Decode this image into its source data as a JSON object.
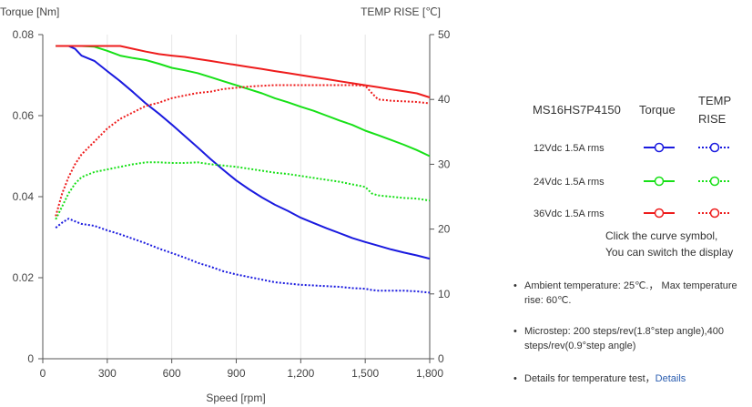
{
  "chart_data": {
    "type": "line",
    "xlabel": "Speed [rpm]",
    "ylabel_left": "Torque  [Nm]",
    "ylabel_right": "TEMP RISE [℃]",
    "xlim": [
      0,
      1800
    ],
    "ylim_left": [
      0,
      0.08
    ],
    "ylim_right": [
      0,
      50
    ],
    "x_ticks": [
      0,
      300,
      600,
      900,
      1200,
      1500,
      1800
    ],
    "x_tick_labels": [
      "0",
      "300",
      "600",
      "900",
      "1,200",
      "1,500",
      "1,800"
    ],
    "y_left_ticks": [
      0,
      0.02,
      0.04,
      0.06,
      0.08
    ],
    "y_left_tick_labels": [
      "0",
      "0.02",
      "0.04",
      "0.06",
      "0.08"
    ],
    "y_right_ticks": [
      0,
      10,
      20,
      30,
      40,
      50
    ],
    "y_right_tick_labels": [
      "0",
      "10",
      "20",
      "30",
      "40",
      "50"
    ],
    "grid": "vertical",
    "series": [
      {
        "name": "12Vdc 1.5A rms",
        "kind": "torque",
        "axis": "left",
        "color": "#1a1adf",
        "x": [
          60,
          120,
          150,
          180,
          240,
          300,
          360,
          420,
          480,
          540,
          600,
          660,
          720,
          780,
          840,
          900,
          960,
          1020,
          1080,
          1140,
          1200,
          1260,
          1320,
          1380,
          1440,
          1500,
          1560,
          1620,
          1680,
          1740,
          1800
        ],
        "y": [
          0.0772,
          0.0772,
          0.0765,
          0.0748,
          0.0735,
          0.071,
          0.0685,
          0.0658,
          0.063,
          0.0605,
          0.0578,
          0.055,
          0.0522,
          0.0493,
          0.0466,
          0.044,
          0.0418,
          0.0398,
          0.038,
          0.0365,
          0.0348,
          0.0335,
          0.0322,
          0.031,
          0.0298,
          0.0288,
          0.0279,
          0.027,
          0.0262,
          0.0255,
          0.0247
        ]
      },
      {
        "name": "24Vdc 1.5A rms",
        "kind": "torque",
        "axis": "left",
        "color": "#17e017",
        "x": [
          60,
          120,
          180,
          240,
          300,
          360,
          420,
          480,
          540,
          600,
          660,
          720,
          780,
          840,
          900,
          960,
          1020,
          1080,
          1140,
          1200,
          1260,
          1320,
          1380,
          1440,
          1500,
          1560,
          1620,
          1680,
          1740,
          1800
        ],
        "y": [
          0.0772,
          0.0772,
          0.0772,
          0.077,
          0.076,
          0.0748,
          0.0742,
          0.0737,
          0.0728,
          0.0718,
          0.0712,
          0.0705,
          0.0695,
          0.0685,
          0.0675,
          0.0665,
          0.0655,
          0.0643,
          0.0633,
          0.0622,
          0.0612,
          0.06,
          0.0588,
          0.0577,
          0.0563,
          0.0552,
          0.054,
          0.0528,
          0.0515,
          0.05
        ]
      },
      {
        "name": "36Vdc 1.5A rms",
        "kind": "torque",
        "axis": "left",
        "color": "#ee1c1c",
        "x": [
          60,
          120,
          180,
          240,
          300,
          360,
          420,
          480,
          540,
          600,
          660,
          720,
          780,
          840,
          900,
          960,
          1020,
          1080,
          1140,
          1200,
          1260,
          1320,
          1380,
          1440,
          1500,
          1560,
          1620,
          1680,
          1740,
          1800
        ],
        "y": [
          0.0772,
          0.0772,
          0.0772,
          0.0772,
          0.0772,
          0.0772,
          0.0765,
          0.0758,
          0.0752,
          0.0748,
          0.0745,
          0.074,
          0.0735,
          0.073,
          0.0725,
          0.072,
          0.0715,
          0.071,
          0.0705,
          0.07,
          0.0695,
          0.069,
          0.0685,
          0.068,
          0.0675,
          0.067,
          0.0665,
          0.066,
          0.0655,
          0.0645
        ]
      },
      {
        "name": "12Vdc 1.5A rms",
        "kind": "temp",
        "axis": "right",
        "color": "#1a1adf",
        "x": [
          60,
          90,
          120,
          150,
          180,
          240,
          300,
          360,
          420,
          480,
          540,
          600,
          660,
          720,
          780,
          840,
          900,
          960,
          1020,
          1080,
          1140,
          1200,
          1260,
          1320,
          1380,
          1440,
          1500,
          1530,
          1560,
          1620,
          1680,
          1740,
          1800
        ],
        "y": [
          20.2,
          21.0,
          21.6,
          21.2,
          20.8,
          20.5,
          19.8,
          19.2,
          18.5,
          17.8,
          17.0,
          16.3,
          15.6,
          14.8,
          14.2,
          13.5,
          13.0,
          12.6,
          12.2,
          11.8,
          11.6,
          11.4,
          11.3,
          11.2,
          11.1,
          10.9,
          10.8,
          10.6,
          10.5,
          10.5,
          10.5,
          10.4,
          10.2
        ]
      },
      {
        "name": "24Vdc 1.5A rms",
        "kind": "temp",
        "axis": "right",
        "color": "#17e017",
        "x": [
          60,
          90,
          120,
          150,
          180,
          240,
          300,
          360,
          420,
          480,
          540,
          600,
          660,
          720,
          780,
          840,
          900,
          960,
          1020,
          1080,
          1140,
          1200,
          1260,
          1320,
          1380,
          1440,
          1500,
          1530,
          1560,
          1620,
          1680,
          1740,
          1800
        ],
        "y": [
          21.5,
          23.5,
          25.5,
          27.0,
          28.0,
          28.8,
          29.2,
          29.6,
          30.0,
          30.3,
          30.3,
          30.2,
          30.2,
          30.3,
          30.0,
          29.8,
          29.6,
          29.3,
          29.0,
          28.7,
          28.5,
          28.2,
          27.9,
          27.6,
          27.3,
          26.9,
          26.5,
          25.5,
          25.2,
          25.0,
          24.8,
          24.7,
          24.4
        ]
      },
      {
        "name": "36Vdc 1.5A rms",
        "kind": "temp",
        "axis": "right",
        "color": "#ee1c1c",
        "x": [
          60,
          90,
          120,
          150,
          180,
          240,
          300,
          360,
          420,
          480,
          540,
          600,
          660,
          720,
          780,
          840,
          900,
          960,
          1020,
          1080,
          1140,
          1200,
          1260,
          1320,
          1380,
          1440,
          1500,
          1530,
          1560,
          1620,
          1680,
          1740,
          1800
        ],
        "y": [
          22.0,
          25.5,
          28.0,
          30.0,
          31.5,
          33.5,
          35.5,
          37.0,
          38.0,
          39.0,
          39.5,
          40.2,
          40.6,
          41.0,
          41.2,
          41.6,
          41.8,
          42.0,
          42.1,
          42.2,
          42.2,
          42.2,
          42.2,
          42.2,
          42.2,
          42.2,
          42.1,
          41.0,
          40.0,
          39.8,
          39.7,
          39.6,
          39.4
        ]
      }
    ]
  },
  "legend": {
    "model": "MS16HS7P4150",
    "torque_header": "Torque",
    "temp_header_line1": "TEMP",
    "temp_header_line2": "RISE",
    "rows": [
      {
        "label": "12Vdc   1.5A rms",
        "color": "#1a1adf"
      },
      {
        "label": "24Vdc   1.5A rms",
        "color": "#17e017"
      },
      {
        "label": "36Vdc   1.5A rms",
        "color": "#ee1c1c"
      }
    ]
  },
  "note": {
    "line1": "Click the curve symbol,",
    "line2": "You can switch the display"
  },
  "bullets": {
    "b1": "Ambient temperature: 25℃.， Max temperature rise: 60℃.",
    "b2": "Microstep: 200 steps/rev(1.8°step angle),400 steps/rev(0.9°step angle)",
    "b3_text": "Details for temperature test，",
    "b3_link": "Details"
  }
}
